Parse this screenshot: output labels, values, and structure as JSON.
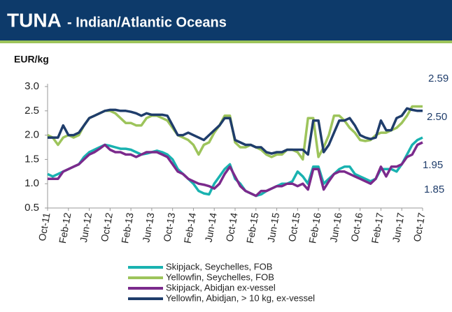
{
  "chart_data": {
    "type": "line",
    "title": "TUNA",
    "subtitle": "- Indian/Atlantic Oceans",
    "y_label": "EUR/kg",
    "categories": [
      "Oct-11",
      null,
      null,
      null,
      "Feb-12",
      null,
      null,
      null,
      "Jun-12",
      null,
      null,
      null,
      "Oct-12",
      null,
      null,
      null,
      "Feb-13",
      null,
      null,
      null,
      "Jun-13",
      null,
      null,
      null,
      "Oct-13",
      null,
      null,
      null,
      "Feb-14",
      null,
      null,
      null,
      "Jun-14",
      null,
      null,
      null,
      "Oct-14",
      null,
      null,
      null,
      "Feb-15",
      null,
      null,
      null,
      "Jun-15",
      null,
      null,
      null,
      "Oct-15",
      null,
      null,
      null,
      "Feb-16",
      null,
      null,
      null,
      "Jun-16",
      null,
      null,
      null,
      "Oct-16",
      null,
      null,
      null,
      "Feb-17",
      null,
      null,
      null,
      "Jun-17",
      null,
      null,
      null,
      "Oct-17"
    ],
    "series": [
      {
        "name": "Skipjack, Seychelles, FOB",
        "color": "#19b2b0",
        "values": [
          1.2,
          1.15,
          1.2,
          1.25,
          1.3,
          1.35,
          1.4,
          1.55,
          1.65,
          1.7,
          1.75,
          1.8,
          1.78,
          1.75,
          1.72,
          1.72,
          1.7,
          1.65,
          1.6,
          1.62,
          1.65,
          1.68,
          1.65,
          1.6,
          1.5,
          1.3,
          1.2,
          1.1,
          1.0,
          0.85,
          0.8,
          0.78,
          1.0,
          1.15,
          1.3,
          1.4,
          1.1,
          1.0,
          0.85,
          0.8,
          0.75,
          0.78,
          0.85,
          0.9,
          0.95,
          1.0,
          1.0,
          1.05,
          1.25,
          1.15,
          1.0,
          1.35,
          1.35,
          1.0,
          1.1,
          1.2,
          1.3,
          1.35,
          1.35,
          1.2,
          1.15,
          1.1,
          1.05,
          1.1,
          1.3,
          1.3,
          1.3,
          1.25,
          1.4,
          1.6,
          1.8,
          1.9,
          1.95
        ]
      },
      {
        "name": "Yellowfin, Seychelles, FOB",
        "color": "#9dc45b",
        "values": [
          2.0,
          1.95,
          1.8,
          1.95,
          2.0,
          1.95,
          2.0,
          2.2,
          2.35,
          2.4,
          2.45,
          2.5,
          2.5,
          2.45,
          2.35,
          2.25,
          2.25,
          2.2,
          2.2,
          2.35,
          2.4,
          2.4,
          2.35,
          2.3,
          2.15,
          2.0,
          1.95,
          1.9,
          1.8,
          1.6,
          1.8,
          1.85,
          2.05,
          2.2,
          2.4,
          2.4,
          1.85,
          1.75,
          1.75,
          1.8,
          1.75,
          1.7,
          1.6,
          1.55,
          1.6,
          1.6,
          1.7,
          1.7,
          1.65,
          1.5,
          2.35,
          2.35,
          1.55,
          1.75,
          2.0,
          2.4,
          2.4,
          2.3,
          2.15,
          2.05,
          1.9,
          1.88,
          1.9,
          2.0,
          2.05,
          2.05,
          2.1,
          2.15,
          2.25,
          2.4,
          2.59,
          2.59,
          2.59
        ]
      },
      {
        "name": "Skipjack, Abidjan ex-vessel",
        "color": "#7b2a8c",
        "values": [
          1.1,
          1.1,
          1.1,
          1.25,
          1.3,
          1.35,
          1.4,
          1.5,
          1.6,
          1.65,
          1.72,
          1.8,
          1.7,
          1.65,
          1.65,
          1.6,
          1.6,
          1.55,
          1.6,
          1.65,
          1.65,
          1.65,
          1.6,
          1.55,
          1.4,
          1.25,
          1.2,
          1.1,
          1.05,
          1.0,
          0.98,
          0.95,
          0.9,
          1.0,
          1.2,
          1.35,
          1.15,
          0.95,
          0.85,
          0.8,
          0.75,
          0.85,
          0.85,
          0.9,
          0.95,
          0.95,
          1.0,
          1.0,
          0.95,
          1.0,
          0.88,
          1.3,
          1.3,
          0.88,
          1.05,
          1.2,
          1.25,
          1.25,
          1.2,
          1.15,
          1.1,
          1.05,
          1.0,
          1.1,
          1.35,
          1.15,
          1.35,
          1.35,
          1.4,
          1.55,
          1.6,
          1.8,
          1.85
        ]
      },
      {
        "name": "Yellowfin, Abidjan, > 10 kg, ex-vessel",
        "color": "#1f3d6b",
        "values": [
          1.95,
          1.95,
          1.95,
          2.2,
          2.0,
          2.0,
          2.05,
          2.2,
          2.35,
          2.4,
          2.45,
          2.5,
          2.52,
          2.52,
          2.5,
          2.5,
          2.48,
          2.45,
          2.4,
          2.45,
          2.42,
          2.42,
          2.42,
          2.4,
          2.2,
          2.0,
          2.0,
          2.05,
          2.0,
          1.95,
          1.9,
          2.0,
          2.1,
          2.2,
          2.35,
          2.35,
          1.9,
          1.85,
          1.8,
          1.8,
          1.75,
          1.75,
          1.65,
          1.62,
          1.65,
          1.65,
          1.7,
          1.7,
          1.7,
          1.7,
          1.6,
          2.3,
          2.3,
          1.65,
          1.8,
          2.05,
          2.3,
          2.3,
          2.35,
          2.2,
          2.0,
          1.95,
          1.92,
          1.95,
          2.3,
          2.1,
          2.1,
          2.35,
          2.4,
          2.55,
          2.52,
          2.5,
          2.5
        ]
      }
    ],
    "end_labels": [
      2.59,
      {
        "value": 2.5,
        "label": "2.50"
      },
      1.95,
      1.85
    ],
    "ylim": [
      0.5,
      3.0
    ],
    "yticks": [
      0.5,
      {
        "value": 1.0,
        "label": "1.0"
      },
      1.5,
      {
        "value": 2.0,
        "label": "2.0"
      },
      2.5,
      {
        "value": 3.0,
        "label": "3.0"
      }
    ],
    "grid": false
  }
}
